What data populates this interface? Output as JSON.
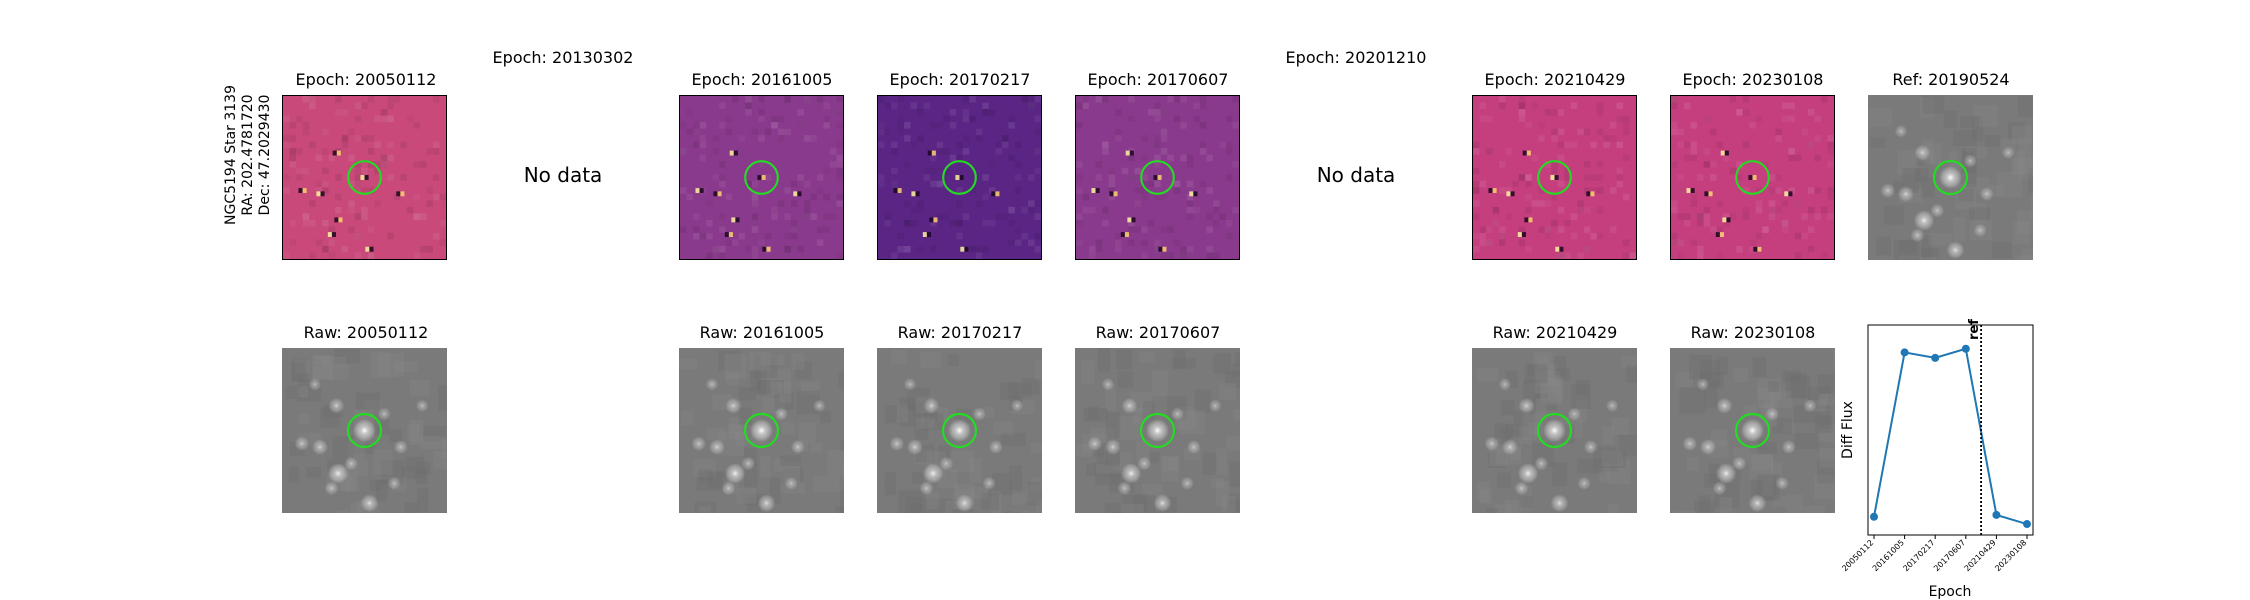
{
  "star": {
    "name": "NGC5194 Star 3139",
    "ra": "RA: 202.4781720",
    "dec": "Dec: 47.2029430"
  },
  "no_data_text": "No data",
  "diff_row": [
    {
      "title": "Epoch: 20050112",
      "has_data": true,
      "cmap": "pinkmag"
    },
    {
      "title": "Epoch: 20130302",
      "has_data": false
    },
    {
      "title": "Epoch: 20161005",
      "has_data": true,
      "cmap": "purple"
    },
    {
      "title": "Epoch: 20170217",
      "has_data": true,
      "cmap": "deep"
    },
    {
      "title": "Epoch: 20170607",
      "has_data": true,
      "cmap": "purple"
    },
    {
      "title": "Epoch: 20201210",
      "has_data": false
    },
    {
      "title": "Epoch: 20210429",
      "has_data": true,
      "cmap": "rose"
    },
    {
      "title": "Epoch: 20230108",
      "has_data": true,
      "cmap": "rose"
    },
    {
      "title": "Ref: 20190524",
      "has_data": true,
      "cmap": "gray"
    }
  ],
  "raw_row": [
    {
      "title": "Raw: 20050112"
    },
    {
      "title": "Raw: 20161005"
    },
    {
      "title": "Raw: 20170217"
    },
    {
      "title": "Raw: 20170607"
    },
    {
      "title": "Raw: 20210429"
    },
    {
      "title": "Raw: 20230108"
    }
  ],
  "colors": {
    "circle": "#22dd22",
    "line": "#1f77b4",
    "gray_bg": "#7a7a7a",
    "pinkmag": "#c8497a",
    "purple": "#8a3a8c",
    "deep": "#5b2585",
    "rose": "#c53f7f"
  },
  "chart_data": {
    "type": "line",
    "categories": [
      "20050112",
      "20161005",
      "20170217",
      "20170607",
      "20210429",
      "20230108"
    ],
    "values": [
      0.05,
      0.95,
      0.92,
      0.97,
      0.06,
      0.01
    ],
    "ylabel": "Diff Flux",
    "xlabel": "Epoch",
    "ref_label": "ref",
    "ref_position": 3.5,
    "ylim": [
      -0.05,
      1.1
    ]
  }
}
